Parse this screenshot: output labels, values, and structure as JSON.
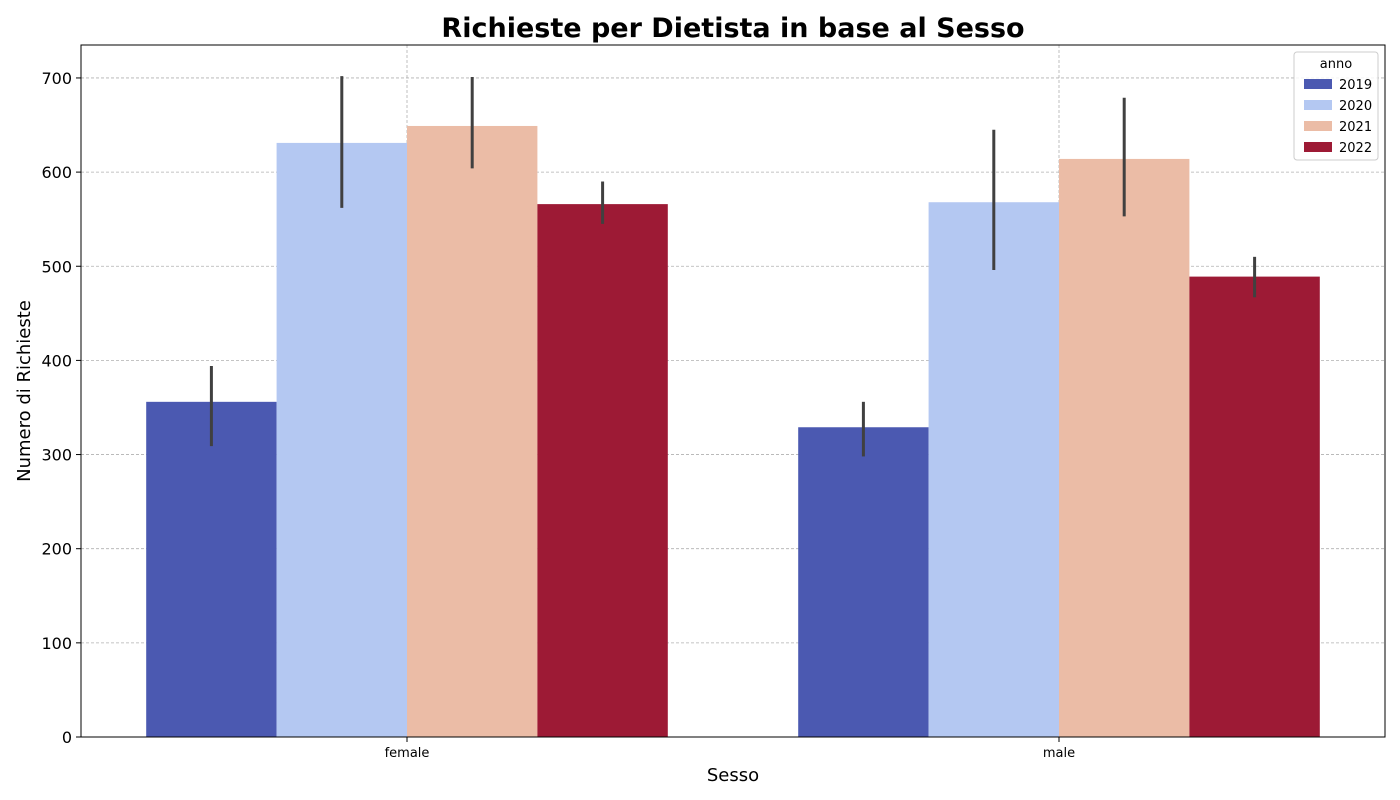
{
  "chart_data": {
    "type": "bar",
    "title": "Richieste per Dietista in base al Sesso",
    "xlabel": "Sesso",
    "ylabel": "Numero di Richieste",
    "categories": [
      "female",
      "male"
    ],
    "ylim": [
      0,
      735
    ],
    "yticks": [
      0,
      100,
      200,
      300,
      400,
      500,
      600,
      700
    ],
    "grid": true,
    "legend": {
      "title": "anno",
      "placement": "top-right"
    },
    "series": [
      {
        "name": "2019",
        "color": "#4b59b1",
        "values": [
          356,
          329
        ],
        "ci": [
          [
            309,
            394
          ],
          [
            298,
            356
          ]
        ]
      },
      {
        "name": "2020",
        "color": "#b4c8f2",
        "values": [
          631,
          568
        ],
        "ci": [
          [
            562,
            702
          ],
          [
            496,
            645
          ]
        ]
      },
      {
        "name": "2021",
        "color": "#ebbca6",
        "values": [
          649,
          614
        ],
        "ci": [
          [
            604,
            701
          ],
          [
            553,
            679
          ]
        ]
      },
      {
        "name": "2022",
        "color": "#9d1a35",
        "values": [
          566,
          489
        ],
        "ci": [
          [
            545,
            590
          ],
          [
            467,
            510
          ]
        ]
      }
    ],
    "errorbar_color": "#404040"
  }
}
